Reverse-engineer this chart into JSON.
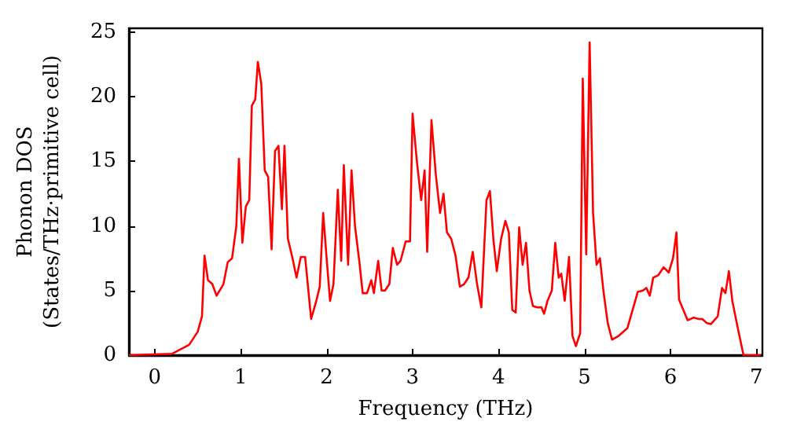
{
  "chart_data": {
    "type": "line",
    "xlabel": "Frequency (THz)",
    "ylabel": "Phonon DOS\n(States/THz·primitive cell)",
    "xlim": [
      -0.3,
      7.07
    ],
    "xticks": [
      0,
      1,
      2,
      3,
      4,
      5,
      6,
      7
    ],
    "ylim": [
      0,
      25.3
    ],
    "yticks": [
      0,
      5,
      10,
      15,
      20,
      25
    ],
    "marker": "none",
    "line_style": "solid",
    "series": [
      {
        "color": "#ff0000",
        "x": [
          -0.3,
          0.2,
          0.4,
          0.5,
          0.55,
          0.58,
          0.62,
          0.67,
          0.72,
          0.8,
          0.85,
          0.9,
          0.95,
          0.98,
          1.02,
          1.06,
          1.1,
          1.13,
          1.17,
          1.2,
          1.24,
          1.28,
          1.32,
          1.36,
          1.4,
          1.44,
          1.48,
          1.51,
          1.55,
          1.6,
          1.65,
          1.7,
          1.75,
          1.82,
          1.88,
          1.92,
          1.96,
          2.0,
          2.04,
          2.08,
          2.13,
          2.17,
          2.2,
          2.25,
          2.29,
          2.33,
          2.38,
          2.42,
          2.47,
          2.52,
          2.55,
          2.6,
          2.64,
          2.68,
          2.73,
          2.77,
          2.82,
          2.86,
          2.92,
          2.97,
          3.0,
          3.05,
          3.1,
          3.14,
          3.17,
          3.22,
          3.27,
          3.32,
          3.36,
          3.4,
          3.45,
          3.5,
          3.55,
          3.6,
          3.65,
          3.7,
          3.75,
          3.8,
          3.86,
          3.9,
          3.94,
          3.98,
          4.03,
          4.08,
          4.12,
          4.16,
          4.2,
          4.24,
          4.28,
          4.32,
          4.36,
          4.4,
          4.45,
          4.5,
          4.53,
          4.57,
          4.62,
          4.66,
          4.7,
          4.73,
          4.77,
          4.82,
          4.86,
          4.9,
          4.95,
          4.98,
          5.02,
          5.06,
          5.1,
          5.14,
          5.18,
          5.22,
          5.27,
          5.32,
          5.4,
          5.5,
          5.56,
          5.62,
          5.68,
          5.72,
          5.76,
          5.8,
          5.86,
          5.92,
          5.98,
          6.03,
          6.07,
          6.1,
          6.15,
          6.2,
          6.27,
          6.33,
          6.37,
          6.42,
          6.47,
          6.55,
          6.6,
          6.64,
          6.68,
          6.72,
          6.78,
          6.85,
          7.05
        ],
        "values": [
          0,
          0.1,
          0.8,
          1.8,
          3,
          7.7,
          5.8,
          5.5,
          4.6,
          5.5,
          7.2,
          7.5,
          10,
          15.2,
          8.7,
          11.5,
          12,
          19.3,
          19.8,
          22.7,
          21,
          14.3,
          13.8,
          8.2,
          15.8,
          16.2,
          11.3,
          16.2,
          9,
          7.6,
          6,
          7.6,
          7.6,
          2.8,
          4.2,
          5.3,
          11,
          7.5,
          4.2,
          5.5,
          12.8,
          7.3,
          14.7,
          7,
          14.3,
          10,
          7.3,
          4.8,
          4.8,
          5.8,
          4.8,
          7.3,
          5,
          5,
          5.5,
          8.3,
          7,
          7.3,
          8.8,
          8.8,
          18.7,
          15,
          12,
          14.3,
          8,
          18.2,
          14,
          11,
          12.5,
          9.5,
          9,
          7.7,
          5.3,
          5.5,
          6,
          8,
          5.5,
          3.7,
          12,
          12.7,
          9,
          6.5,
          9,
          10.4,
          9.5,
          3.5,
          3.3,
          9.9,
          7,
          8.7,
          5,
          3.8,
          3.7,
          3.7,
          3.2,
          4.2,
          5,
          8.7,
          6,
          6.3,
          4.2,
          7.6,
          1.5,
          0.7,
          1.7,
          21.4,
          7.8,
          24.2,
          11,
          7,
          7.5,
          5,
          2.5,
          1.2,
          1.5,
          2.1,
          3.5,
          4.9,
          5,
          5.2,
          4.6,
          6,
          6.2,
          6.8,
          6.4,
          7.5,
          9.5,
          4.3,
          3.5,
          2.7,
          2.9,
          2.8,
          2.8,
          2.5,
          2.4,
          3,
          5.2,
          4.8,
          6.5,
          4.2,
          2.2,
          0,
          0
        ]
      }
    ]
  }
}
